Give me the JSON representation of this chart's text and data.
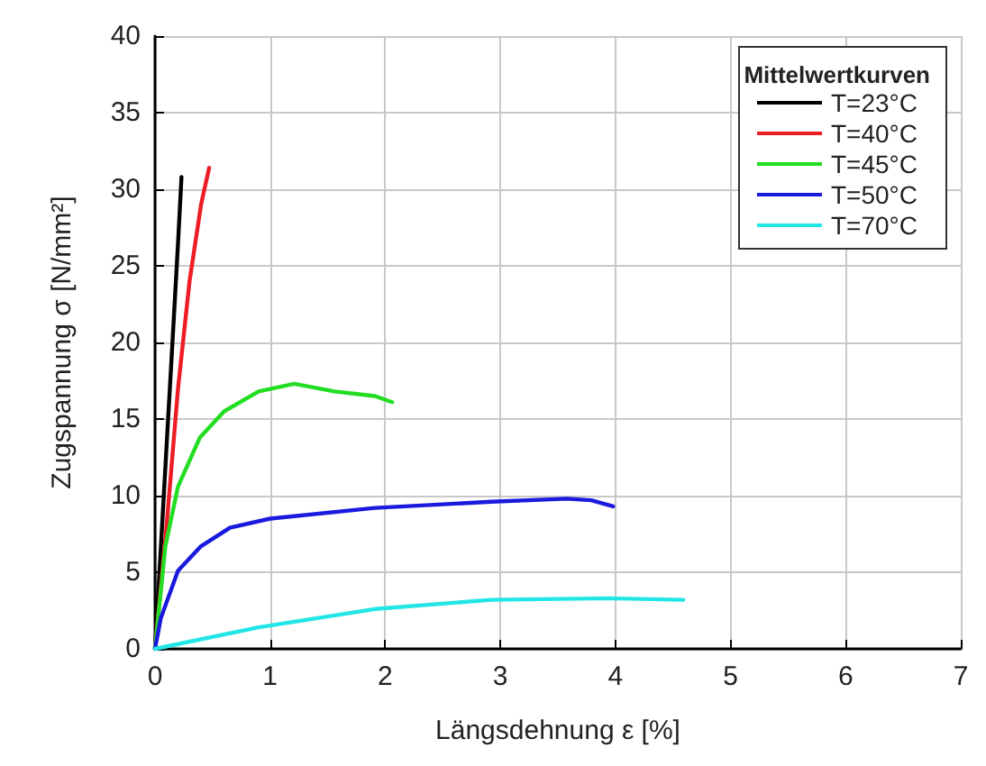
{
  "chart_data": {
    "type": "line",
    "xlabel": "Längsdehnung ε [%]",
    "ylabel": "Zugspannung σ [N/mm²]",
    "legend_title": "Mittelwertkurven",
    "xlim": [
      0,
      7
    ],
    "xticks": [
      0,
      1,
      2,
      3,
      4,
      5,
      6,
      7
    ],
    "ylim": [
      0,
      40
    ],
    "yticks": [
      0,
      5,
      10,
      15,
      20,
      25,
      30,
      35,
      40
    ],
    "grid": true,
    "legend": "top right",
    "marker": "none",
    "line_style": "solid",
    "series": [
      {
        "name": "T=23°C",
        "color": "#000000",
        "x": [
          0,
          0.05,
          0.1,
          0.15,
          0.2,
          0.23
        ],
        "values": [
          0,
          6.5,
          13.2,
          19.8,
          26.5,
          30.8
        ]
      },
      {
        "name": "T=40°C",
        "color": "#ee1c25",
        "x": [
          0,
          0.1,
          0.2,
          0.3,
          0.4,
          0.47
        ],
        "values": [
          0,
          8,
          17,
          24,
          29,
          31.4
        ]
      },
      {
        "name": "T=45°C",
        "color": "#22dd22",
        "x": [
          0,
          0.09,
          0.2,
          0.39,
          0.6,
          0.9,
          1.21,
          1.56,
          1.91,
          2.06
        ],
        "values": [
          0,
          6.7,
          10.6,
          13.8,
          15.5,
          16.8,
          17.3,
          16.8,
          16.5,
          16.1
        ]
      },
      {
        "name": "T=50°C",
        "color": "#1a1adf",
        "x": [
          0,
          0.05,
          0.2,
          0.4,
          0.65,
          1.0,
          1.91,
          2.92,
          3.58,
          3.79,
          3.98
        ],
        "values": [
          0,
          2,
          5.1,
          6.7,
          7.9,
          8.5,
          9.2,
          9.6,
          9.8,
          9.7,
          9.3
        ]
      },
      {
        "name": "T=70°C",
        "color": "#22e6e6",
        "x": [
          0,
          0.9,
          1.91,
          2.92,
          3.94,
          4.59
        ],
        "values": [
          0,
          1.4,
          2.6,
          3.2,
          3.3,
          3.2
        ]
      }
    ]
  }
}
